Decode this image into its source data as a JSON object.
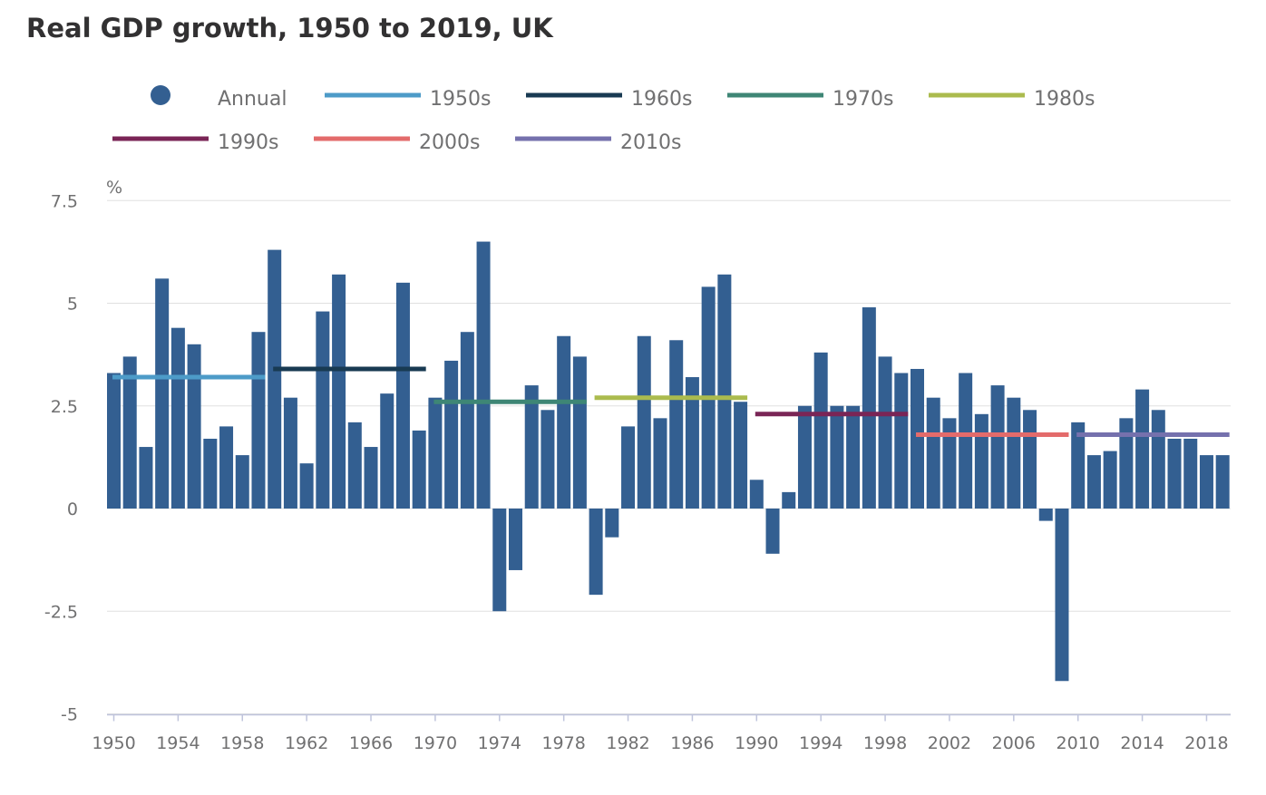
{
  "chart_data": {
    "type": "bar",
    "title": "Real GDP growth, 1950 to 2019, UK",
    "ylabel": "%",
    "xlabel": "",
    "ylim": [
      -5,
      7.5
    ],
    "yticks": [
      7.5,
      5,
      2.5,
      0,
      -2.5,
      -5
    ],
    "ytick_labels": [
      "7.5",
      "5",
      "2.5",
      "0",
      "-2.5",
      "-5"
    ],
    "xticks": [
      "1950",
      "1954",
      "1958",
      "1962",
      "1966",
      "1970",
      "1974",
      "1978",
      "1982",
      "1986",
      "1990",
      "1994",
      "1998",
      "2002",
      "2006",
      "2010",
      "2014",
      "2018"
    ],
    "grid": true,
    "legend_position": "top",
    "x": [
      1950,
      1951,
      1952,
      1953,
      1954,
      1955,
      1956,
      1957,
      1958,
      1959,
      1960,
      1961,
      1962,
      1963,
      1964,
      1965,
      1966,
      1967,
      1968,
      1969,
      1970,
      1971,
      1972,
      1973,
      1974,
      1975,
      1976,
      1977,
      1978,
      1979,
      1980,
      1981,
      1982,
      1983,
      1984,
      1985,
      1986,
      1987,
      1988,
      1989,
      1990,
      1991,
      1992,
      1993,
      1994,
      1995,
      1996,
      1997,
      1998,
      1999,
      2000,
      2001,
      2002,
      2003,
      2004,
      2005,
      2006,
      2007,
      2008,
      2009,
      2010,
      2011,
      2012,
      2013,
      2014,
      2015,
      2016,
      2017,
      2018,
      2019
    ],
    "series": [
      {
        "name": "Annual",
        "color": "#335f91",
        "values": [
          3.3,
          3.7,
          1.5,
          5.6,
          4.4,
          4.0,
          1.7,
          2.0,
          1.3,
          4.3,
          6.3,
          2.7,
          1.1,
          4.8,
          5.7,
          2.1,
          1.5,
          2.8,
          5.5,
          1.9,
          2.7,
          3.6,
          4.3,
          6.5,
          -2.5,
          -1.5,
          3.0,
          2.4,
          4.2,
          3.7,
          -2.1,
          -0.7,
          2.0,
          4.2,
          2.2,
          4.1,
          3.2,
          5.4,
          5.7,
          2.6,
          0.7,
          -1.1,
          0.4,
          2.5,
          3.8,
          2.5,
          2.5,
          4.9,
          3.7,
          3.3,
          3.4,
          2.7,
          2.2,
          3.3,
          2.3,
          3.0,
          2.7,
          2.4,
          -0.3,
          -4.2,
          2.1,
          1.3,
          1.4,
          2.2,
          2.9,
          2.4,
          1.7,
          1.7,
          1.3,
          1.3
        ]
      }
    ],
    "decade_averages": [
      {
        "name": "1950s",
        "start": 1950,
        "end": 1959,
        "value": 3.2,
        "color": "#4d9bc8"
      },
      {
        "name": "1960s",
        "start": 1960,
        "end": 1969,
        "value": 3.4,
        "color": "#183a52"
      },
      {
        "name": "1970s",
        "start": 1970,
        "end": 1979,
        "value": 2.6,
        "color": "#3e8675"
      },
      {
        "name": "1980s",
        "start": 1980,
        "end": 1989,
        "value": 2.7,
        "color": "#abbb4e"
      },
      {
        "name": "1990s",
        "start": 1990,
        "end": 1999,
        "value": 2.3,
        "color": "#7a2556"
      },
      {
        "name": "2000s",
        "start": 2000,
        "end": 2009,
        "value": 1.8,
        "color": "#e36b6b"
      },
      {
        "name": "2010s",
        "start": 2010,
        "end": 2019,
        "value": 1.8,
        "color": "#7571ad"
      }
    ]
  }
}
